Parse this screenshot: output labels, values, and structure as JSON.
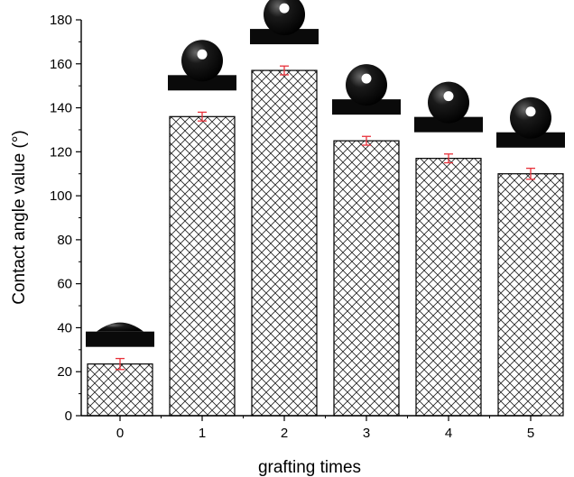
{
  "chart_data": {
    "type": "bar",
    "xlabel": "grafting times",
    "ylabel": "Contact angle value (°)",
    "categories": [
      "0",
      "1",
      "2",
      "3",
      "4",
      "5"
    ],
    "values": [
      23.5,
      136,
      157,
      125,
      117,
      110
    ],
    "errors": [
      2.5,
      2,
      2,
      2,
      2,
      2.5
    ],
    "ylim": [
      0,
      180
    ],
    "yticks": [
      "0",
      "20",
      "40",
      "60",
      "80",
      "100",
      "120",
      "140",
      "160",
      "180"
    ],
    "grid": false,
    "legend": "none",
    "bar_fill": "crosshatch",
    "error_bar_color": "#e8313a",
    "inset_images": "water droplet photo above each bar"
  }
}
